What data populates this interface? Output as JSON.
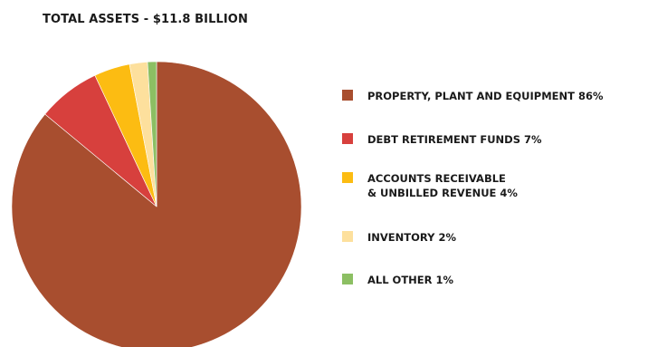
{
  "chart_data": {
    "type": "pie",
    "title": "TOTAL ASSETS - $11.8 BILLION",
    "slices": [
      {
        "label_lines": [
          "PROPERTY, PLANT AND EQUIPMENT 86%"
        ],
        "name": "PROPERTY, PLANT AND EQUIPMENT",
        "value": 86,
        "color": "#a84e2f"
      },
      {
        "label_lines": [
          "DEBT RETIREMENT FUNDS 7%"
        ],
        "name": "DEBT RETIREMENT FUNDS",
        "value": 7,
        "color": "#d7403d"
      },
      {
        "label_lines": [
          "ACCOUNTS RECEIVABLE",
          "& UNBILLED REVENUE 4%"
        ],
        "name": "ACCOUNTS RECEIVABLE & UNBILLED REVENUE",
        "value": 4,
        "color": "#fcbc12"
      },
      {
        "label_lines": [
          "INVENTORY 2%"
        ],
        "name": "INVENTORY",
        "value": 2,
        "color": "#fde09d"
      },
      {
        "label_lines": [
          "ALL OTHER 1%"
        ],
        "name": "ALL OTHER",
        "value": 1,
        "color": "#8cbf63"
      }
    ]
  }
}
